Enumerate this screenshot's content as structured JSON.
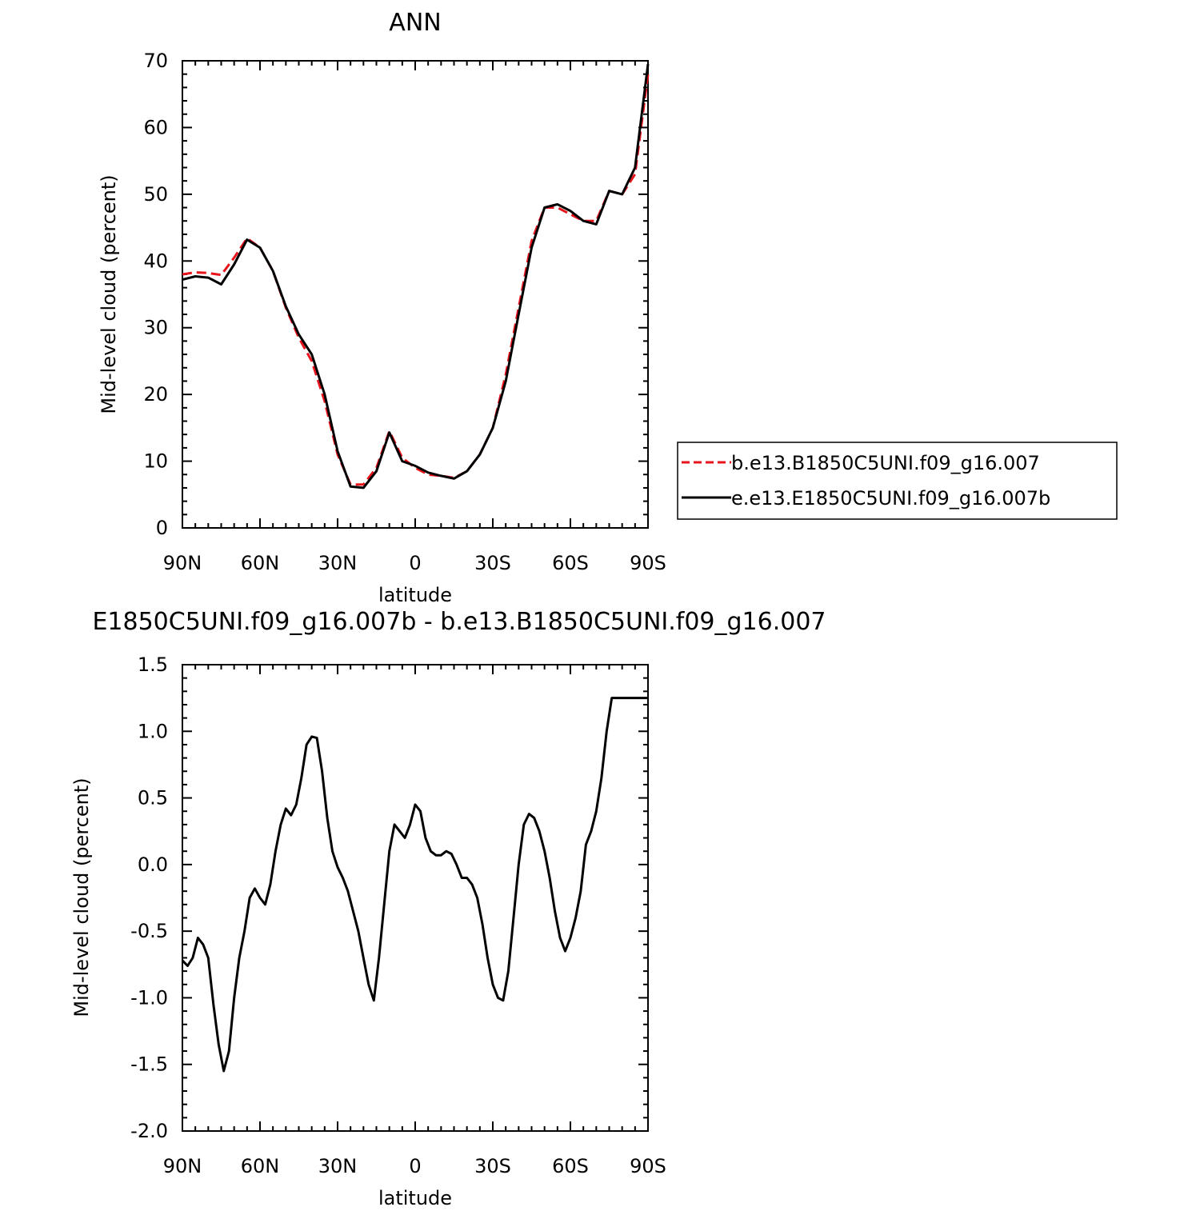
{
  "charts": [
    {
      "title": "ANN",
      "ylabel": "Mid-level cloud (percent)",
      "xlabel": "latitude",
      "xtick_labels": [
        "90N",
        "60N",
        "30N",
        "0",
        "30S",
        "60S",
        "90S"
      ],
      "ytick_labels": [
        "0",
        "10",
        "20",
        "30",
        "40",
        "50",
        "60",
        "70"
      ]
    },
    {
      "title": "E1850C5UNI.f09_g16.007b - b.e13.B1850C5UNI.f09_g16.007",
      "ylabel": "Mid-level cloud (percent)",
      "xlabel": "latitude",
      "xtick_labels": [
        "90N",
        "60N",
        "30N",
        "0",
        "30S",
        "60S",
        "90S"
      ],
      "ytick_labels": [
        "1.5",
        "1.0",
        "0.5",
        "0.0",
        "-0.5",
        "-1.0",
        "-1.5",
        "-2.0"
      ]
    }
  ],
  "legend": [
    {
      "label": "b.e13.B1850C5UNI.f09_g16.007",
      "color": "#e8141c",
      "dash": true
    },
    {
      "label": "e.e13.E1850C5UNI.f09_g16.007b",
      "color": "#000000",
      "dash": false
    }
  ],
  "chart_data": [
    {
      "type": "line",
      "title": "ANN",
      "xlabel": "latitude",
      "ylabel": "Mid-level cloud (percent)",
      "xlim": [
        90,
        -90
      ],
      "ylim": [
        0,
        70
      ],
      "x": [
        90,
        85,
        80,
        75,
        70,
        65,
        60,
        55,
        50,
        45,
        40,
        35,
        30,
        25,
        20,
        15,
        10,
        5,
        0,
        -5,
        -10,
        -15,
        -20,
        -25,
        -30,
        -35,
        -40,
        -45,
        -50,
        -55,
        -60,
        -65,
        -70,
        -75,
        -80,
        -85,
        -90
      ],
      "series": [
        {
          "name": "b.e13.B1850C5UNI.f09_g16.007",
          "color": "#e8141c",
          "dash": true,
          "values": [
            38.0,
            38.3,
            38.2,
            37.9,
            40.5,
            43.4,
            42.0,
            38.5,
            33.0,
            28.5,
            25.0,
            19.0,
            11.0,
            6.5,
            6.5,
            9.0,
            14.5,
            10.5,
            9.0,
            8.0,
            7.8,
            7.5,
            8.5,
            11.0,
            15.0,
            23.0,
            33.0,
            43.0,
            48.0,
            48.0,
            47.0,
            46.0,
            46.0,
            50.5,
            50.0,
            53.0,
            68.0
          ]
        },
        {
          "name": "e.e13.E1850C5UNI.f09_g16.007b",
          "color": "#000000",
          "dash": false,
          "values": [
            37.2,
            37.7,
            37.5,
            36.5,
            39.5,
            43.2,
            42.0,
            38.5,
            33.2,
            29.0,
            26.0,
            20.0,
            11.5,
            6.2,
            6.0,
            8.5,
            14.3,
            10.0,
            9.3,
            8.3,
            7.8,
            7.4,
            8.5,
            11.0,
            15.0,
            22.0,
            32.0,
            42.0,
            48.0,
            48.5,
            47.5,
            46.0,
            45.5,
            50.5,
            50.0,
            54.0,
            69.5
          ]
        }
      ]
    },
    {
      "type": "line",
      "title": "E1850C5UNI.f09_g16.007b - b.e13.B1850C5UNI.f09_g16.007",
      "xlabel": "latitude",
      "ylabel": "Mid-level cloud (percent)",
      "xlim": [
        90,
        -90
      ],
      "ylim": [
        -2.0,
        1.5
      ],
      "x": [
        90,
        88,
        86,
        84,
        82,
        80,
        78,
        76,
        74,
        72,
        70,
        68,
        66,
        64,
        62,
        60,
        58,
        56,
        54,
        52,
        50,
        48,
        46,
        44,
        42,
        40,
        38,
        36,
        34,
        32,
        30,
        28,
        26,
        24,
        22,
        20,
        18,
        16,
        14,
        12,
        10,
        8,
        6,
        4,
        2,
        0,
        -2,
        -4,
        -6,
        -8,
        -10,
        -12,
        -14,
        -16,
        -18,
        -20,
        -22,
        -24,
        -26,
        -28,
        -30,
        -32,
        -34,
        -36,
        -38,
        -40,
        -42,
        -44,
        -46,
        -48,
        -50,
        -52,
        -54,
        -56,
        -58,
        -60,
        -62,
        -64,
        -66,
        -68,
        -70,
        -72,
        -74,
        -76,
        -78,
        -80,
        -82,
        -84,
        -86,
        -88,
        -90
      ],
      "series": [
        {
          "name": "e.e13.E1850C5UNI.f09_g16.007b",
          "color": "#000000",
          "dash": false,
          "values": [
            -0.72,
            -0.76,
            -0.7,
            -0.55,
            -0.6,
            -0.7,
            -1.05,
            -1.35,
            -1.55,
            -1.4,
            -1.0,
            -0.7,
            -0.5,
            -0.25,
            -0.18,
            -0.25,
            -0.3,
            -0.15,
            0.1,
            0.3,
            0.42,
            0.37,
            0.45,
            0.65,
            0.9,
            0.96,
            0.95,
            0.7,
            0.35,
            0.1,
            -0.02,
            -0.1,
            -0.2,
            -0.35,
            -0.5,
            -0.7,
            -0.9,
            -1.02,
            -0.7,
            -0.3,
            0.1,
            0.3,
            0.25,
            0.2,
            0.3,
            0.45,
            0.4,
            0.2,
            0.1,
            0.07,
            0.07,
            0.1,
            0.08,
            0.0,
            -0.1,
            -0.1,
            -0.15,
            -0.25,
            -0.45,
            -0.7,
            -0.9,
            -1.0,
            -1.02,
            -0.8,
            -0.4,
            0.0,
            0.3,
            0.38,
            0.35,
            0.25,
            0.1,
            -0.1,
            -0.35,
            -0.55,
            -0.65,
            -0.55,
            -0.4,
            -0.2,
            0.15,
            0.25,
            0.4,
            0.65,
            1.0,
            1.25,
            1.25,
            1.25,
            1.25,
            1.25,
            1.25,
            1.25,
            1.25
          ]
        }
      ]
    }
  ]
}
